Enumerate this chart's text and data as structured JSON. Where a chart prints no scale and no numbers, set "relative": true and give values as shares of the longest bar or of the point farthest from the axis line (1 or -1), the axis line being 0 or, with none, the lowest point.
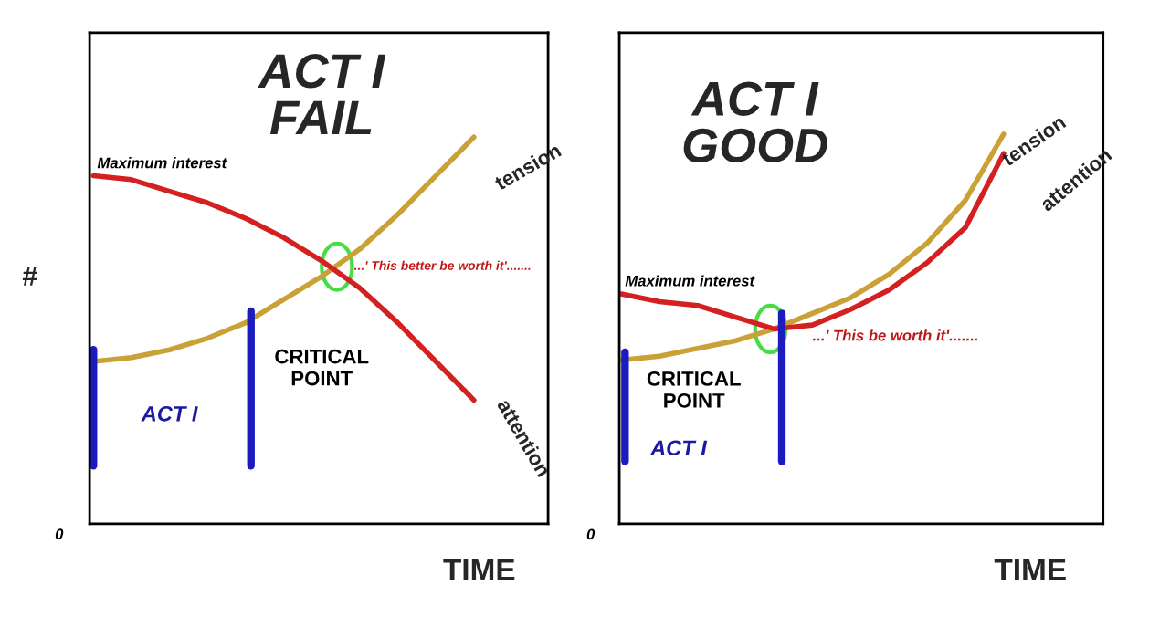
{
  "chart_data": [
    {
      "type": "line",
      "relative": true,
      "title": "ACT I\nFAIL",
      "ylabel": "#",
      "xlabel": "TIME",
      "legend": false,
      "categories": [
        null,
        null,
        null,
        null,
        null,
        null,
        null,
        null,
        null,
        null,
        null
      ],
      "series": [
        {
          "name": "tension",
          "color": "#c9a136",
          "values": [
            0.42,
            0.43,
            0.45,
            0.48,
            0.52,
            0.58,
            0.64,
            0.71,
            0.8,
            0.9,
            1.0
          ]
        },
        {
          "name": "attention",
          "color": "#d42020",
          "values": [
            0.9,
            0.89,
            0.86,
            0.83,
            0.79,
            0.74,
            0.68,
            0.61,
            0.52,
            0.42,
            0.32
          ]
        }
      ],
      "annotations": [
        "Maximum interest",
        "...' This better be worth it'.......",
        "CRITICAL\nPOINT",
        "ACT I",
        "0"
      ]
    },
    {
      "type": "line",
      "relative": true,
      "title": "ACT I\nGOOD",
      "xlabel": "TIME",
      "legend": false,
      "categories": [
        null,
        null,
        null,
        null,
        null,
        null,
        null,
        null,
        null,
        null,
        null
      ],
      "series": [
        {
          "name": "tension",
          "color": "#c9a136",
          "values": [
            0.42,
            0.43,
            0.45,
            0.47,
            0.5,
            0.54,
            0.58,
            0.64,
            0.72,
            0.83,
            1.0
          ]
        },
        {
          "name": "attention",
          "color": "#d42020",
          "values": [
            0.59,
            0.57,
            0.56,
            0.53,
            0.5,
            0.51,
            0.55,
            0.6,
            0.67,
            0.76,
            0.95
          ]
        }
      ],
      "annotations": [
        "Maximum interest",
        "...' This be worth it'.......",
        "CRITICAL\nPOINT",
        "ACT I",
        "0"
      ]
    }
  ]
}
